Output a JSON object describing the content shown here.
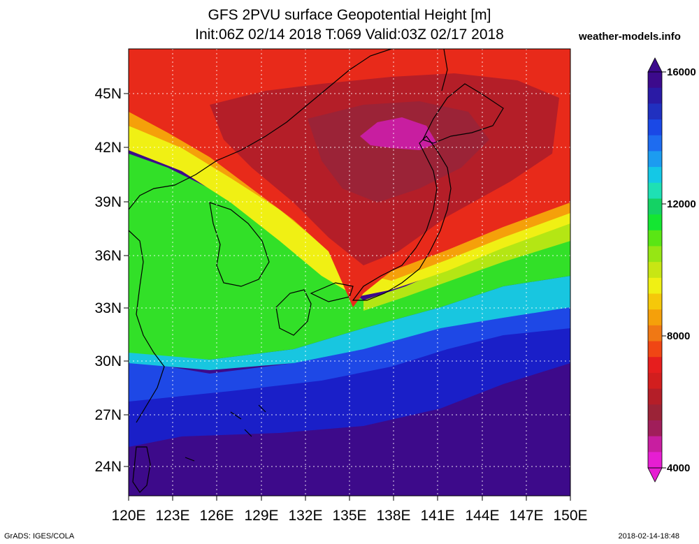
{
  "title": {
    "line1": "GFS 2PVU surface Geopotential Height [m]",
    "line2": "Init:06Z 02/14 2018 T:069 Valid:03Z 02/17 2018"
  },
  "watermark": "weather-models.info",
  "map": {
    "lat_labels": [
      "45N",
      "42N",
      "39N",
      "36N",
      "33N",
      "30N",
      "27N",
      "24N"
    ],
    "lon_labels": [
      "120E",
      "123E",
      "126E",
      "129E",
      "132E",
      "135E",
      "138E",
      "141E",
      "144E",
      "147E",
      "150E"
    ]
  },
  "colorbar": {
    "labels": [
      "16000",
      "12000",
      "8000",
      "4000"
    ],
    "colors_top_to_bottom": [
      "#3c0a8c",
      "#2a1aa5",
      "#2030c0",
      "#1a48e6",
      "#1e6cf0",
      "#1c9cf0",
      "#14c8e6",
      "#1ee0b4",
      "#14d264",
      "#14e632",
      "#5ae614",
      "#96e614",
      "#c8e614",
      "#f0f014",
      "#f5c80a",
      "#f5a00a",
      "#f07814",
      "#f04614",
      "#e61e1e",
      "#d21e1e",
      "#b41e28",
      "#9b2337",
      "#a01e5a",
      "#c81ea0",
      "#e61ed2"
    ]
  },
  "footer": {
    "left": "GrADS: IGES/COLA",
    "right": "2018-02-14-18:48"
  }
}
